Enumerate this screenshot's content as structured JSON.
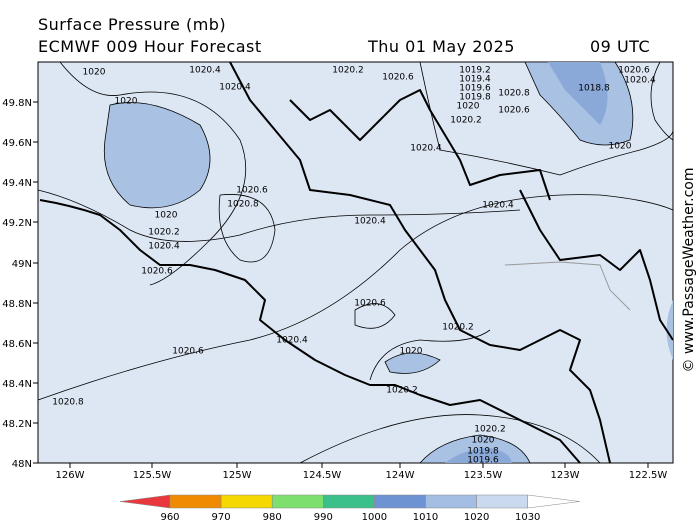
{
  "header": {
    "title": "Surface Pressure (mb)",
    "model": "ECMWF 009 Hour Forecast",
    "date": "Thu 01 May 2025",
    "time": "09 UTC"
  },
  "axes": {
    "latitude": [
      "49.8N",
      "49.6N",
      "49.4N",
      "49.2N",
      "49N",
      "48.8N",
      "48.6N",
      "48.4N",
      "48.2N",
      "48N"
    ],
    "longitude": [
      "126W",
      "125.5W",
      "125W",
      "124.5W",
      "124W",
      "123.5W",
      "123W",
      "122.5W"
    ]
  },
  "contour_labels": [
    "1020",
    "1020.4",
    "1020.2",
    "1020.6",
    "1019.2",
    "1019.4",
    "1019.6",
    "1019.8",
    "1020",
    "1020.2",
    "1020.8",
    "1018.8",
    "1020.6",
    "1020.4",
    "1020",
    "1020.4",
    "1020.4",
    "1020.6",
    "1020.8",
    "1020",
    "1020.2",
    "1020.4",
    "1020.6",
    "1020.4",
    "1020.4",
    "1020.6",
    "1020.2",
    "1020.4",
    "1020",
    "1020.6",
    "1020.6",
    "1020.2",
    "1020.2",
    "1020",
    "1019.8",
    "1019.6",
    "1020.8",
    "1020"
  ],
  "colorbar": {
    "ticks": [
      960,
      970,
      980,
      990,
      1000,
      1010,
      1020,
      1030
    ],
    "colors": [
      "#e8383d",
      "#f08a00",
      "#f5d800",
      "#7ee06c",
      "#3cc08a",
      "#6e93d2",
      "#a4bde3",
      "#cbd9ef",
      "#ffffff"
    ]
  },
  "credit": "© www.PassageWeather.com"
}
